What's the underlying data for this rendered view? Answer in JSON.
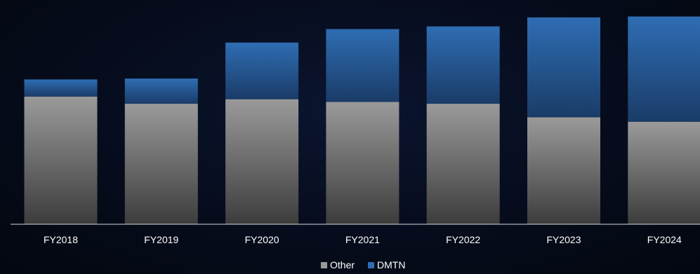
{
  "chart_data": {
    "type": "bar",
    "stacked": true,
    "categories": [
      "FY2018",
      "FY2019",
      "FY2020",
      "FY2021",
      "FY2022",
      "FY2023",
      "FY2024"
    ],
    "series": [
      {
        "name": "Other",
        "values": [
          71,
          67,
          69.5,
          68,
          67,
          59.5,
          57
        ],
        "color": "#8c8c8c"
      },
      {
        "name": "DMTN",
        "values": [
          9.5,
          14,
          31.5,
          40.5,
          43,
          55.5,
          58.5
        ],
        "color": "#2f6db3"
      }
    ],
    "ylim": [
      0,
      120
    ],
    "grid": false,
    "legend": "bottom-center",
    "background": "#050b1a"
  }
}
